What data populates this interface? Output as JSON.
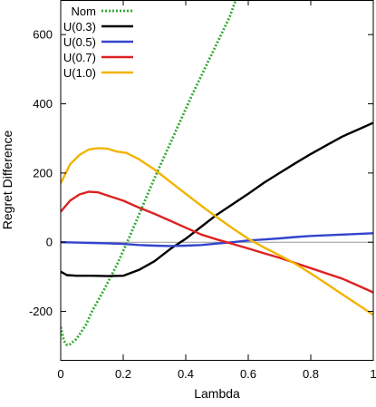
{
  "chart_data": {
    "type": "line",
    "title": "",
    "xlabel": "Lambda",
    "ylabel": "Regret Difference",
    "xlim": [
      0,
      1
    ],
    "ylim": [
      -340,
      700
    ],
    "xticks": [
      0,
      0.2,
      0.4,
      0.6,
      0.8,
      1
    ],
    "xtick_labels": [
      "0",
      "0.2",
      "0.4",
      "0.6",
      "0.8",
      "1"
    ],
    "yticks": [
      -200,
      0,
      200,
      400,
      600
    ],
    "ytick_labels": [
      "-200",
      "0",
      "200",
      "400",
      "600"
    ],
    "grid": false,
    "zero_line": true,
    "legend_position": "top-left",
    "series": [
      {
        "name": "Nom",
        "color": "#33aa33",
        "style": "dotted",
        "x": [
          0,
          0.01,
          0.02,
          0.03,
          0.05,
          0.08,
          0.1,
          0.14,
          0.18,
          0.22,
          0.26,
          0.3,
          0.34,
          0.38,
          0.42,
          0.46,
          0.5,
          0.54,
          0.56
        ],
        "y": [
          -245,
          -285,
          -297,
          -295,
          -280,
          -240,
          -200,
          -135,
          -65,
          15,
          100,
          185,
          265,
          345,
          425,
          500,
          575,
          650,
          700
        ]
      },
      {
        "name": "U(0.3)",
        "color": "#000000",
        "style": "solid",
        "x": [
          0,
          0.02,
          0.05,
          0.1,
          0.15,
          0.2,
          0.25,
          0.3,
          0.35,
          0.4,
          0.45,
          0.5,
          0.55,
          0.6,
          0.65,
          0.7,
          0.75,
          0.8,
          0.85,
          0.9,
          0.95,
          1
        ],
        "y": [
          -85,
          -95,
          -97,
          -97,
          -98,
          -97,
          -80,
          -55,
          -20,
          10,
          45,
          80,
          110,
          140,
          172,
          200,
          228,
          255,
          280,
          305,
          325,
          345
        ]
      },
      {
        "name": "U(0.5)",
        "color": "#3344cc",
        "style": "solid",
        "x": [
          0,
          0.05,
          0.1,
          0.15,
          0.2,
          0.25,
          0.3,
          0.35,
          0.4,
          0.45,
          0.5,
          0.55,
          0.6,
          0.65,
          0.7,
          0.75,
          0.8,
          0.85,
          0.9,
          0.95,
          1
        ],
        "y": [
          0,
          -1,
          -2,
          -3,
          -5,
          -8,
          -10,
          -11,
          -10,
          -8,
          -4,
          0,
          5,
          8,
          11,
          15,
          18,
          20,
          22,
          24,
          26
        ]
      },
      {
        "name": "U(0.7)",
        "color": "#dd2222",
        "style": "solid",
        "x": [
          0,
          0.03,
          0.06,
          0.09,
          0.12,
          0.15,
          0.2,
          0.25,
          0.3,
          0.35,
          0.4,
          0.45,
          0.5,
          0.55,
          0.6,
          0.65,
          0.7,
          0.75,
          0.8,
          0.85,
          0.9,
          0.95,
          1
        ],
        "y": [
          88,
          120,
          138,
          146,
          144,
          135,
          120,
          100,
          82,
          62,
          42,
          22,
          8,
          -5,
          -18,
          -32,
          -45,
          -60,
          -75,
          -90,
          -105,
          -125,
          -145
        ]
      },
      {
        "name": "U(1.0)",
        "color": "#f2b300",
        "style": "solid",
        "x": [
          0,
          0.03,
          0.06,
          0.09,
          0.12,
          0.15,
          0.18,
          0.21,
          0.25,
          0.3,
          0.35,
          0.4,
          0.45,
          0.5,
          0.55,
          0.6,
          0.65,
          0.7,
          0.75,
          0.8,
          0.85,
          0.9,
          0.95,
          1
        ],
        "y": [
          170,
          225,
          252,
          268,
          272,
          270,
          262,
          258,
          240,
          210,
          175,
          140,
          105,
          72,
          40,
          10,
          -15,
          -38,
          -62,
          -90,
          -120,
          -150,
          -180,
          -210
        ]
      }
    ]
  }
}
